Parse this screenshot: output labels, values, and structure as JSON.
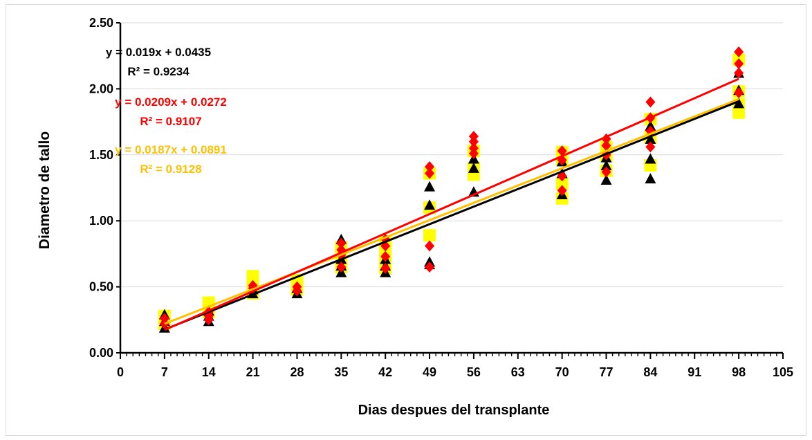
{
  "chart_data": {
    "type": "scatter",
    "title": "",
    "xlabel": "Dias despues del transplante",
    "ylabel": "Diametro de tallo",
    "xlim": [
      0,
      105
    ],
    "ylim": [
      0,
      2.5
    ],
    "x_ticks": [
      0,
      7,
      14,
      21,
      28,
      35,
      42,
      49,
      56,
      63,
      70,
      77,
      84,
      91,
      98,
      105
    ],
    "y_ticks": [
      0,
      0.5,
      1.0,
      1.5,
      2.0,
      2.5
    ],
    "x_tick_labels": [
      "0",
      "7",
      "14",
      "21",
      "28",
      "35",
      "42",
      "49",
      "56",
      "63",
      "70",
      "77",
      "84",
      "91",
      "98",
      "105"
    ],
    "y_tick_labels": [
      "0.00",
      "0.50",
      "1.00",
      "1.50",
      "2.00",
      "2.50"
    ],
    "grid": "horizontal",
    "legend": "none",
    "series": [
      {
        "marker": "square",
        "color": "#ffff00",
        "trendline": {
          "slope": 0.0187,
          "intercept": 0.0891,
          "color": "#ffc000"
        },
        "points": [
          [
            7,
            0.22
          ],
          [
            7,
            0.26
          ],
          [
            7,
            0.28
          ],
          [
            14,
            0.31
          ],
          [
            14,
            0.35
          ],
          [
            14,
            0.38
          ],
          [
            21,
            0.45
          ],
          [
            21,
            0.53
          ],
          [
            21,
            0.58
          ],
          [
            28,
            0.48
          ],
          [
            28,
            0.52
          ],
          [
            28,
            0.55
          ],
          [
            35,
            0.65
          ],
          [
            35,
            0.7
          ],
          [
            35,
            0.76
          ],
          [
            35,
            0.8
          ],
          [
            42,
            0.64
          ],
          [
            42,
            0.72
          ],
          [
            42,
            0.78
          ],
          [
            42,
            0.84
          ],
          [
            49,
            0.89
          ],
          [
            49,
            1.1
          ],
          [
            49,
            1.36
          ],
          [
            56,
            1.35
          ],
          [
            56,
            1.4
          ],
          [
            56,
            1.53
          ],
          [
            70,
            1.17
          ],
          [
            70,
            1.28
          ],
          [
            70,
            1.46
          ],
          [
            70,
            1.52
          ],
          [
            77,
            1.38
          ],
          [
            77,
            1.49
          ],
          [
            77,
            1.56
          ],
          [
            84,
            1.42
          ],
          [
            84,
            1.63
          ],
          [
            84,
            1.77
          ],
          [
            98,
            1.82
          ],
          [
            98,
            1.88
          ],
          [
            98,
            1.98
          ],
          [
            98,
            2.22
          ]
        ]
      },
      {
        "marker": "triangle",
        "color": "#000000",
        "trendline": {
          "slope": 0.019,
          "intercept": 0.0435,
          "color": "#000000"
        },
        "points": [
          [
            7,
            0.19
          ],
          [
            7,
            0.24
          ],
          [
            7,
            0.29
          ],
          [
            14,
            0.24
          ],
          [
            14,
            0.28
          ],
          [
            14,
            0.32
          ],
          [
            21,
            0.45
          ],
          [
            21,
            0.48
          ],
          [
            28,
            0.45
          ],
          [
            28,
            0.49
          ],
          [
            35,
            0.61
          ],
          [
            35,
            0.66
          ],
          [
            35,
            0.71
          ],
          [
            35,
            0.86
          ],
          [
            42,
            0.61
          ],
          [
            42,
            0.66
          ],
          [
            42,
            0.71
          ],
          [
            49,
            0.67
          ],
          [
            49,
            0.69
          ],
          [
            49,
            1.12
          ],
          [
            49,
            1.26
          ],
          [
            56,
            1.22
          ],
          [
            56,
            1.4
          ],
          [
            56,
            1.47
          ],
          [
            70,
            1.2
          ],
          [
            70,
            1.36
          ],
          [
            70,
            1.45
          ],
          [
            77,
            1.31
          ],
          [
            77,
            1.42
          ],
          [
            77,
            1.48
          ],
          [
            84,
            1.32
          ],
          [
            84,
            1.47
          ],
          [
            84,
            1.62
          ],
          [
            84,
            1.72
          ],
          [
            98,
            1.89
          ],
          [
            98,
            1.99
          ],
          [
            98,
            2.12
          ]
        ]
      },
      {
        "marker": "diamond",
        "color": "#ff0000",
        "trendline": {
          "slope": 0.0209,
          "intercept": 0.0272,
          "color": "#ff0000"
        },
        "points": [
          [
            7,
            0.22
          ],
          [
            7,
            0.26
          ],
          [
            14,
            0.25
          ],
          [
            14,
            0.28
          ],
          [
            14,
            0.31
          ],
          [
            21,
            0.49
          ],
          [
            21,
            0.51
          ],
          [
            28,
            0.47
          ],
          [
            28,
            0.5
          ],
          [
            35,
            0.65
          ],
          [
            35,
            0.74
          ],
          [
            35,
            0.78
          ],
          [
            35,
            0.83
          ],
          [
            42,
            0.64
          ],
          [
            42,
            0.73
          ],
          [
            42,
            0.81
          ],
          [
            42,
            0.86
          ],
          [
            49,
            0.65
          ],
          [
            49,
            0.81
          ],
          [
            49,
            1.36
          ],
          [
            49,
            1.41
          ],
          [
            56,
            1.51
          ],
          [
            56,
            1.55
          ],
          [
            56,
            1.6
          ],
          [
            56,
            1.64
          ],
          [
            70,
            1.23
          ],
          [
            70,
            1.34
          ],
          [
            70,
            1.46
          ],
          [
            70,
            1.53
          ],
          [
            77,
            1.37
          ],
          [
            77,
            1.5
          ],
          [
            77,
            1.57
          ],
          [
            77,
            1.62
          ],
          [
            84,
            1.56
          ],
          [
            84,
            1.68
          ],
          [
            84,
            1.78
          ],
          [
            84,
            1.9
          ],
          [
            98,
            1.97
          ],
          [
            98,
            2.12
          ],
          [
            98,
            2.19
          ],
          [
            98,
            2.28
          ]
        ]
      }
    ],
    "annotations": [
      {
        "line1": "y = 0.019x + 0.0435",
        "line2": "R² = 0.9234",
        "color": "#000000"
      },
      {
        "line1": "y = 0.0209x + 0.0272",
        "line2": "R² = 0.9107",
        "color": "#ff0000"
      },
      {
        "line1": "y = 0.0187x + 0.0891",
        "line2": "R² = 0.9128",
        "color": "#ffc000"
      }
    ]
  }
}
